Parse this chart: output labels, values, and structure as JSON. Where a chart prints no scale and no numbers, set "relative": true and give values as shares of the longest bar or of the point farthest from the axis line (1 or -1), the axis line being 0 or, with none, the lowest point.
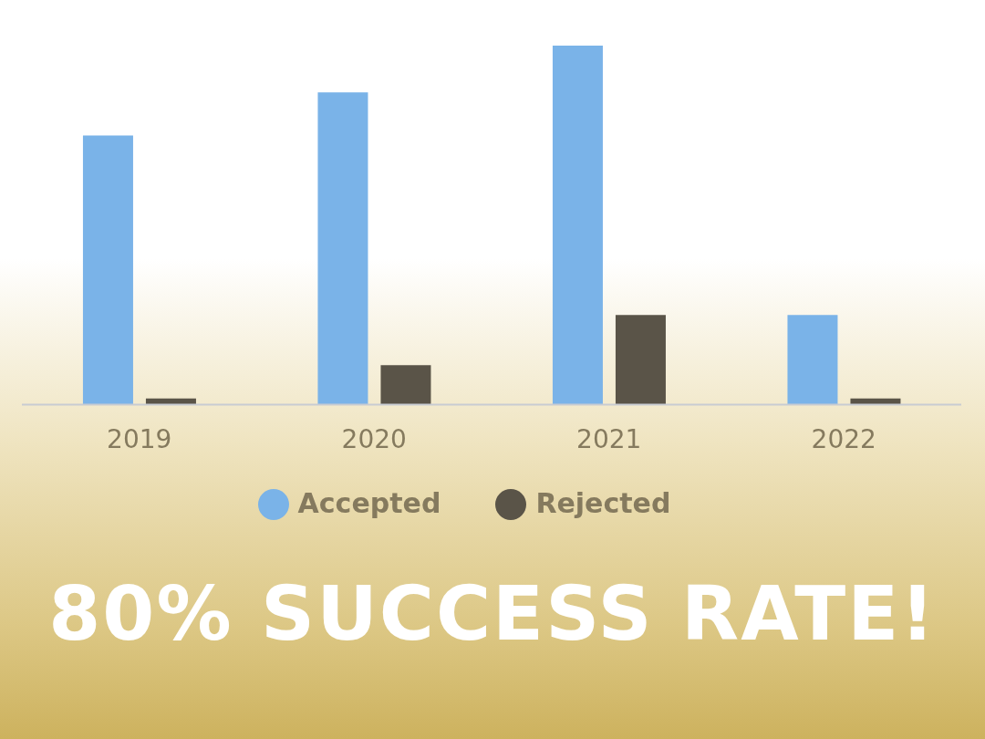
{
  "chart_data": {
    "type": "bar",
    "title": "80% SUCCESS RATE!",
    "categories": [
      "2019",
      "2020",
      "2021",
      "2022"
    ],
    "relative": true,
    "series": [
      {
        "name": "Accepted",
        "color": "#7ab3e8",
        "values": [
          0.75,
          0.87,
          1,
          0.25
        ]
      },
      {
        "name": "Rejected",
        "color": "#5a5448",
        "values": [
          0.017,
          0.11,
          0.25,
          0.017
        ]
      }
    ],
    "legend": "bottom"
  }
}
